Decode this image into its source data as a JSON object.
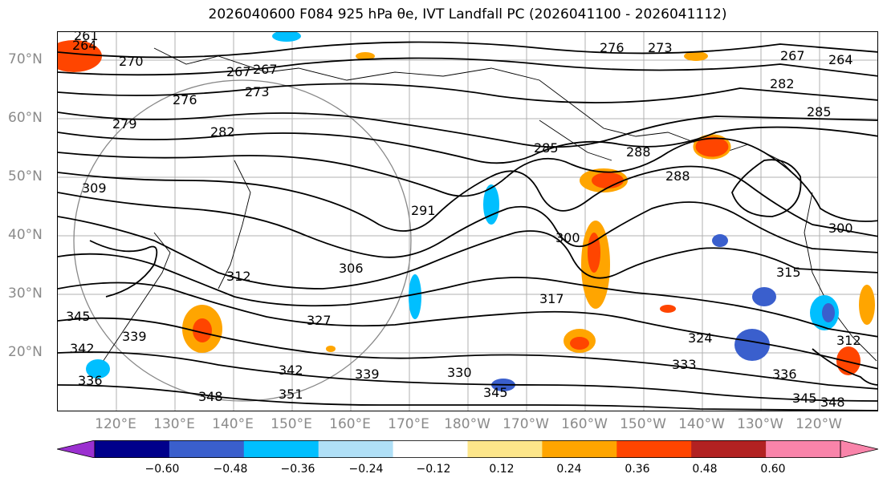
{
  "title": "2026040600 F084 925 hPa θe, IVT Landfall PC (2026041100 - 2026041112)",
  "lat_labels": [
    "70°N",
    "60°N",
    "50°N",
    "40°N",
    "30°N",
    "20°N"
  ],
  "lon_labels": [
    "120°E",
    "130°E",
    "140°E",
    "150°E",
    "160°E",
    "170°E",
    "180°W",
    "170°W",
    "160°W",
    "150°W",
    "140°W",
    "130°W",
    "120°W"
  ],
  "colorbar": {
    "tick_labels": [
      "−0.60",
      "−0.48",
      "−0.36",
      "−0.24",
      "−0.12",
      "0.12",
      "0.24",
      "0.36",
      "0.48",
      "0.60"
    ],
    "colors": [
      "#9b30d0",
      "#00008b",
      "#3a5fcd",
      "#00bfff",
      "#b0e0f7",
      "#ffffff",
      "#fde68a",
      "#ffa500",
      "#ff4500",
      "#b22222",
      "#f984aa",
      "#f984aa"
    ]
  },
  "contour_labels": [
    "264",
    "261",
    "267",
    "270",
    "267",
    "273",
    "276",
    "279",
    "276",
    "273",
    "267",
    "264",
    "282",
    "285",
    "282",
    "288",
    "288",
    "285",
    "291",
    "300",
    "306",
    "309",
    "300",
    "312",
    "315",
    "317",
    "312",
    "324",
    "327",
    "330",
    "333",
    "336",
    "339",
    "339",
    "342",
    "345",
    "348",
    "348",
    "351",
    "345",
    "345",
    "342",
    "336"
  ]
}
